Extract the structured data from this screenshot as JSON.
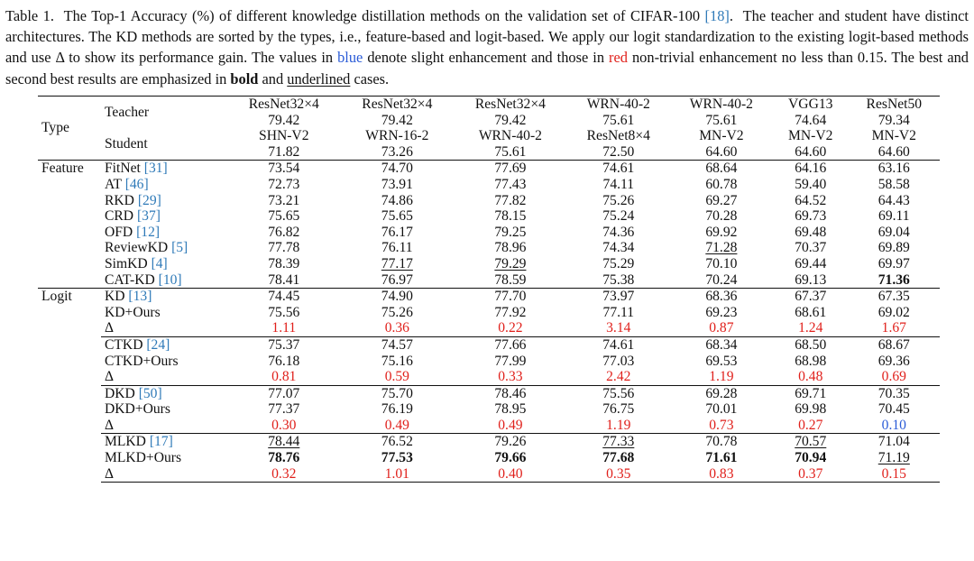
{
  "caption": {
    "p1": "Table 1.  The Top-1 Accuracy (%) of different knowledge distillation methods on the validation set of CIFAR-100 ",
    "cite1": "[18]",
    "p2": ".  The teacher and student have distinct architectures. The KD methods are sorted by the types, i.e., feature-based and logit-based. We apply our logit standardization to the existing logit-based methods and use Δ to show its performance gain. The values in ",
    "blue_word": "blue",
    "p3": " denote slight enhancement and those in ",
    "red_word": "red",
    "p4": " non-trivial enhancement no less than 0.15. The best and second best results are emphasized in ",
    "bold_word": "bold",
    "p5": " and ",
    "underline_word": "underlined",
    "p6": " cases."
  },
  "header": {
    "type_label": "Type",
    "teacher_label": "Teacher",
    "student_label": "Student",
    "columns": [
      {
        "teacher": "ResNet32×4",
        "teacher_acc": "79.42",
        "student": "SHN-V2",
        "student_acc": "71.82"
      },
      {
        "teacher": "ResNet32×4",
        "teacher_acc": "79.42",
        "student": "WRN-16-2",
        "student_acc": "73.26"
      },
      {
        "teacher": "ResNet32×4",
        "teacher_acc": "79.42",
        "student": "WRN-40-2",
        "student_acc": "75.61"
      },
      {
        "teacher": "WRN-40-2",
        "teacher_acc": "75.61",
        "student": "ResNet8×4",
        "student_acc": "72.50"
      },
      {
        "teacher": "WRN-40-2",
        "teacher_acc": "75.61",
        "student": "MN-V2",
        "student_acc": "64.60"
      },
      {
        "teacher": "VGG13",
        "teacher_acc": "74.64",
        "student": "MN-V2",
        "student_acc": "64.60"
      },
      {
        "teacher": "ResNet50",
        "teacher_acc": "79.34",
        "student": "MN-V2",
        "student_acc": "64.60"
      }
    ]
  },
  "feature_label": "Feature",
  "logit_label": "Logit",
  "feature_rows": [
    {
      "name": "FitNet ",
      "cite": "[31]",
      "values": [
        "73.54",
        "74.70",
        "77.69",
        "74.61",
        "68.64",
        "64.16",
        "63.16"
      ],
      "styles": [
        "",
        "",
        "",
        "",
        "",
        "",
        ""
      ]
    },
    {
      "name": "AT ",
      "cite": "[46]",
      "values": [
        "72.73",
        "73.91",
        "77.43",
        "74.11",
        "60.78",
        "59.40",
        "58.58"
      ],
      "styles": [
        "",
        "",
        "",
        "",
        "",
        "",
        ""
      ]
    },
    {
      "name": "RKD ",
      "cite": "[29]",
      "values": [
        "73.21",
        "74.86",
        "77.82",
        "75.26",
        "69.27",
        "64.52",
        "64.43"
      ],
      "styles": [
        "",
        "",
        "",
        "",
        "",
        "",
        ""
      ]
    },
    {
      "name": "CRD ",
      "cite": "[37]",
      "values": [
        "75.65",
        "75.65",
        "78.15",
        "75.24",
        "70.28",
        "69.73",
        "69.11"
      ],
      "styles": [
        "",
        "",
        "",
        "",
        "",
        "",
        ""
      ]
    },
    {
      "name": "OFD ",
      "cite": "[12]",
      "values": [
        "76.82",
        "76.17",
        "79.25",
        "74.36",
        "69.92",
        "69.48",
        "69.04"
      ],
      "styles": [
        "",
        "",
        "",
        "",
        "",
        "",
        ""
      ]
    },
    {
      "name": "ReviewKD ",
      "cite": "[5]",
      "values": [
        "77.78",
        "76.11",
        "78.96",
        "74.34",
        "71.28",
        "70.37",
        "69.89"
      ],
      "styles": [
        "",
        "",
        "",
        "",
        "u",
        "",
        ""
      ]
    },
    {
      "name": "SimKD ",
      "cite": "[4]",
      "values": [
        "78.39",
        "77.17",
        "79.29",
        "75.29",
        "70.10",
        "69.44",
        "69.97"
      ],
      "styles": [
        "",
        "u",
        "u",
        "",
        "",
        "",
        ""
      ]
    },
    {
      "name": "CAT-KD ",
      "cite": "[10]",
      "values": [
        "78.41",
        "76.97",
        "78.59",
        "75.38",
        "70.24",
        "69.13",
        "71.36"
      ],
      "styles": [
        "",
        "",
        "",
        "",
        "",
        "",
        "b"
      ]
    }
  ],
  "logit_groups": [
    {
      "base": {
        "name": "KD ",
        "cite": "[13]",
        "values": [
          "74.45",
          "74.90",
          "77.70",
          "73.97",
          "68.36",
          "67.37",
          "67.35"
        ],
        "styles": [
          "",
          "",
          "",
          "",
          "",
          "",
          ""
        ]
      },
      "ours": {
        "name": "KD+Ours",
        "values": [
          "75.56",
          "75.26",
          "77.92",
          "77.11",
          "69.23",
          "68.61",
          "69.02"
        ],
        "styles": [
          "",
          "",
          "",
          "",
          "",
          "",
          ""
        ]
      },
      "delta": {
        "name": "Δ",
        "values": [
          "1.11",
          "0.36",
          "0.22",
          "3.14",
          "0.87",
          "1.24",
          "1.67"
        ],
        "colors": [
          "red",
          "red",
          "red",
          "red",
          "red",
          "red",
          "red"
        ]
      }
    },
    {
      "base": {
        "name": "CTKD ",
        "cite": "[24]",
        "values": [
          "75.37",
          "74.57",
          "77.66",
          "74.61",
          "68.34",
          "68.50",
          "68.67"
        ],
        "styles": [
          "",
          "",
          "",
          "",
          "",
          "",
          ""
        ]
      },
      "ours": {
        "name": "CTKD+Ours",
        "values": [
          "76.18",
          "75.16",
          "77.99",
          "77.03",
          "69.53",
          "68.98",
          "69.36"
        ],
        "styles": [
          "",
          "",
          "",
          "",
          "",
          "",
          ""
        ]
      },
      "delta": {
        "name": "Δ",
        "values": [
          "0.81",
          "0.59",
          "0.33",
          "2.42",
          "1.19",
          "0.48",
          "0.69"
        ],
        "colors": [
          "red",
          "red",
          "red",
          "red",
          "red",
          "red",
          "red"
        ]
      }
    },
    {
      "base": {
        "name": "DKD ",
        "cite": "[50]",
        "values": [
          "77.07",
          "75.70",
          "78.46",
          "75.56",
          "69.28",
          "69.71",
          "70.35"
        ],
        "styles": [
          "",
          "",
          "",
          "",
          "",
          "",
          ""
        ]
      },
      "ours": {
        "name": "DKD+Ours",
        "values": [
          "77.37",
          "76.19",
          "78.95",
          "76.75",
          "70.01",
          "69.98",
          "70.45"
        ],
        "styles": [
          "",
          "",
          "",
          "",
          "",
          "",
          ""
        ]
      },
      "delta": {
        "name": "Δ",
        "values": [
          "0.30",
          "0.49",
          "0.49",
          "1.19",
          "0.73",
          "0.27",
          "0.10"
        ],
        "colors": [
          "red",
          "red",
          "red",
          "red",
          "red",
          "red",
          "blue"
        ]
      }
    },
    {
      "base": {
        "name": "MLKD ",
        "cite": "[17]",
        "values": [
          "78.44",
          "76.52",
          "79.26",
          "77.33",
          "70.78",
          "70.57",
          "71.04"
        ],
        "styles": [
          "u",
          "",
          "",
          "u",
          "",
          "u",
          ""
        ]
      },
      "ours": {
        "name": "MLKD+Ours",
        "values": [
          "78.76",
          "77.53",
          "79.66",
          "77.68",
          "71.61",
          "70.94",
          "71.19"
        ],
        "styles": [
          "b",
          "b",
          "b",
          "b",
          "b",
          "b",
          "u"
        ]
      },
      "delta": {
        "name": "Δ",
        "values": [
          "0.32",
          "1.01",
          "0.40",
          "0.35",
          "0.83",
          "0.37",
          "0.15"
        ],
        "colors": [
          "red",
          "red",
          "red",
          "red",
          "red",
          "red",
          "red"
        ]
      }
    }
  ],
  "colors": {
    "blue": "#2a5bd7",
    "red": "#e0201b",
    "cite": "#2f7ab8"
  }
}
